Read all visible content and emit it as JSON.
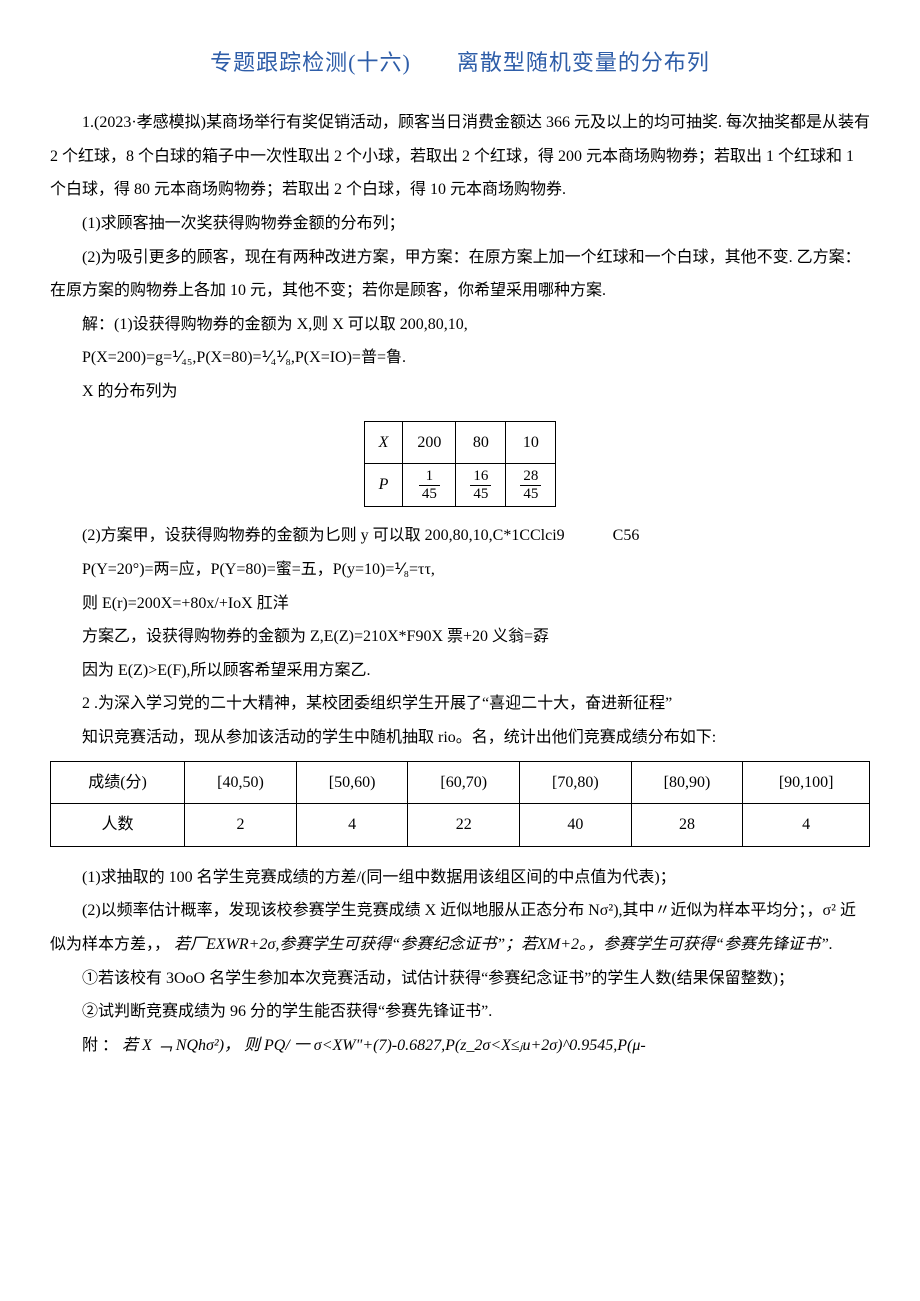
{
  "title": "专题跟踪检测(十六)　　离散型随机变量的分布列",
  "p1": "1.(2023·孝感模拟)某商场举行有奖促销活动，顾客当日消费金额达 366 元及以上的均可抽奖. 每次抽奖都是从装有 2 个红球，8 个白球的箱子中一次性取出 2 个小球，若取出 2 个红球，得 200 元本商场购物券；若取出 1 个红球和 1 个白球，得 80 元本商场购物券；若取出 2 个白球，得 10 元本商场购物券.",
  "p1_1": "(1)求顾客抽一次奖获得购物券金额的分布列；",
  "p1_2": "(2)为吸引更多的顾客，现在有两种改进方案，甲方案：在原方案上加一个红球和一个白球，其他不变. 乙方案：在原方案的购物券上各加 10 元，其他不变；若你是顾客，你希望采用哪种方案.",
  "sol1a": "解：(1)设获得购物券的金额为 X,则 X 可以取 200,80,10,",
  "sol1b": "P(X=200)=g=⅟₄₅,P(X=80)=⅟₄⅟₈,P(X=IO)=普=鲁.",
  "sol1c": "X 的分布列为",
  "smalltable": {
    "head": [
      "X",
      "200",
      "80",
      "10"
    ],
    "row_label": "P",
    "p1": {
      "num": "1",
      "den": "45"
    },
    "p2": {
      "num": "16",
      "den": "45"
    },
    "p3": {
      "num": "28",
      "den": "45"
    }
  },
  "sol1d": "(2)方案甲，设获得购物券的金额为匕则 y 可以取 200,80,10,C*1CClci9　　　C56",
  "sol1e": "P(Y=20°)=两=应，P(Y=80)=蜜=五，P(y=10)=⅟₈=ττ,",
  "sol1f": "则 E(r)=200X=+80x/+IoX 肛洋",
  "sol1g": "方案乙，设获得购物券的金额为 Z,E(Z)=210X*F90X 票+20 义翁=孬",
  "sol1h": "因为 E(Z)>E(F),所以顾客希望采用方案乙.",
  "p2": "2 .为深入学习党的二十大精神，某校团委组织学生开展了“喜迎二十大，奋进新征程”",
  "p2b": "知识竞赛活动，现从参加该活动的学生中随机抽取 rio。名，统计出他们竞赛成绩分布如下:",
  "widetable": {
    "headers": [
      "成绩(分)",
      "[40,50)",
      "[50,60)",
      "[60,70)",
      "[70,80)",
      "[80,90)",
      "[90,100]"
    ],
    "row_label": "人数",
    "values": [
      "2",
      "4",
      "22",
      "40",
      "28",
      "4"
    ]
  },
  "p2_1": "(1)求抽取的 100 名学生竞赛成绩的方差/(同一组中数据用该组区间的中点值为代表)；",
  "p2_2": "(2)以频率估计概率，发现该校参赛学生竞赛成绩 X 近似地服从正态分布 Nσ²),其中〃近似为样本平均分；，σ² 近似为样本方差，，",
  "p2_2b": "若厂EXWR+2σ,参赛学生可获得“参赛纪念证书”；若XM+2。，参赛学生可获得“参赛先锋证书”.",
  "p2_2_1": "①若该校有 3OoO 名学生参加本次竞赛活动，试估计获得“参赛纪念证书”的学生人数(结果保留整数)；",
  "p2_2_2": "②试判断竞赛成绩为 96 分的学生能否获得“参赛先锋证书”.",
  "p2_app": "附 ：",
  "p2_app_b": "若 X ﹁ NQhσ²)， 则 PQ/ 一 σ<XW\"+(7)-0.6827,P(z_2σ<X≤ⱼu+2σ)^0.9545,P(μ-",
  "colors": {
    "title": "#2e5da8",
    "text": "#000000",
    "bg": "#ffffff",
    "border": "#000000"
  },
  "fonts": {
    "body_size": 16,
    "title_size": 22,
    "line_height": 2.1
  }
}
